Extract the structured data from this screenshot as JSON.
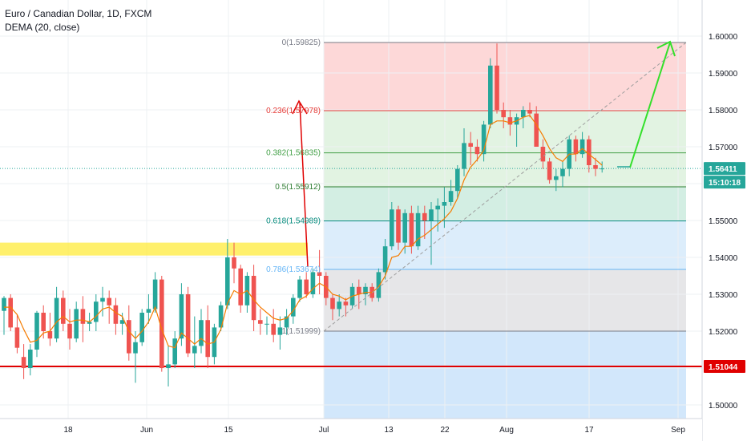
{
  "header": {
    "title": "Euro / Canadian Dollar, 1D, FXCM",
    "indicator": "DEMA (20, close)"
  },
  "colors": {
    "up": "#26a69a",
    "down": "#ef5350",
    "dema": "#f57c00",
    "support": "#e00000",
    "price_badge": "#26a69a",
    "arrow_up": "#33e02a",
    "arrow_red": "#e00000",
    "highlight": "#ffeb3b"
  },
  "chart_data": {
    "type": "candlestick",
    "ylim": [
      1.4965,
      1.605
    ],
    "y_ticks": [
      "1.60000",
      "1.59000",
      "1.58000",
      "1.57000",
      "1.56000",
      "1.55000",
      "1.54000",
      "1.53000",
      "1.52000",
      "1.51000",
      "1.50000"
    ],
    "x_ticks": [
      "18",
      "Jun",
      "15",
      "Jul",
      "13",
      "22",
      "Aug",
      "17",
      "Sep"
    ],
    "price_badge": "1.56411",
    "countdown_badge": "15:10:18",
    "support_badge": "1.51044",
    "support_level": 1.51044,
    "current_price": 1.56411,
    "highlight_zone": [
      1.5405,
      1.544
    ],
    "fib_levels": [
      {
        "label": "0(1.59825)",
        "price": 1.59825,
        "color": "#787b86"
      },
      {
        "label": "0.236(1.57978)",
        "price": 1.57978,
        "color": "#e53935"
      },
      {
        "label": "0.382(1.56835)",
        "price": 1.56835,
        "color": "#43a047"
      },
      {
        "label": "0.5(1.55912)",
        "price": 1.55912,
        "color": "#2e7d32"
      },
      {
        "label": "0.618(1.54989)",
        "price": 1.54989,
        "color": "#00897b"
      },
      {
        "label": "0.786(1.53674)",
        "price": 1.53674,
        "color": "#64b5f6"
      },
      {
        "label": "1(1.51999)",
        "price": 1.51999,
        "color": "#787b86"
      }
    ],
    "candles": [
      [
        1.5255,
        1.5295,
        1.519,
        1.529
      ],
      [
        1.529,
        1.53,
        1.52,
        1.521
      ],
      [
        1.521,
        1.5245,
        1.514,
        1.5155
      ],
      [
        1.513,
        1.5165,
        1.507,
        1.51
      ],
      [
        1.51,
        1.5165,
        1.508,
        1.515
      ],
      [
        1.515,
        1.5255,
        1.513,
        1.525
      ],
      [
        1.525,
        1.527,
        1.518,
        1.52
      ],
      [
        1.52,
        1.525,
        1.516,
        1.518
      ],
      [
        1.518,
        1.532,
        1.517,
        1.529
      ],
      [
        1.529,
        1.531,
        1.52,
        1.522
      ],
      [
        1.522,
        1.526,
        1.515,
        1.518
      ],
      [
        1.518,
        1.528,
        1.517,
        1.526
      ],
      [
        1.526,
        1.5295,
        1.517,
        1.522
      ],
      [
        1.522,
        1.525,
        1.52,
        1.5225
      ],
      [
        1.5225,
        1.53,
        1.52,
        1.528
      ],
      [
        1.528,
        1.532,
        1.524,
        1.529
      ],
      [
        1.529,
        1.531,
        1.522,
        1.527
      ],
      [
        1.527,
        1.529,
        1.519,
        1.522
      ],
      [
        1.522,
        1.525,
        1.519,
        1.523
      ],
      [
        1.523,
        1.527,
        1.512,
        1.514
      ],
      [
        1.514,
        1.52,
        1.506,
        1.517
      ],
      [
        1.517,
        1.526,
        1.516,
        1.525
      ],
      [
        1.525,
        1.53,
        1.522,
        1.526
      ],
      [
        1.526,
        1.536,
        1.525,
        1.534
      ],
      [
        1.534,
        1.535,
        1.509,
        1.51
      ],
      [
        1.51,
        1.516,
        1.505,
        1.511
      ],
      [
        1.511,
        1.52,
        1.51,
        1.518
      ],
      [
        1.518,
        1.533,
        1.516,
        1.53
      ],
      [
        1.53,
        1.532,
        1.513,
        1.514
      ],
      [
        1.514,
        1.524,
        1.51,
        1.516
      ],
      [
        1.516,
        1.526,
        1.514,
        1.523
      ],
      [
        1.523,
        1.527,
        1.51,
        1.513
      ],
      [
        1.513,
        1.522,
        1.511,
        1.521
      ],
      [
        1.521,
        1.528,
        1.52,
        1.527
      ],
      [
        1.527,
        1.545,
        1.526,
        1.54
      ],
      [
        1.54,
        1.544,
        1.533,
        1.537
      ],
      [
        1.537,
        1.538,
        1.525,
        1.527
      ],
      [
        1.527,
        1.536,
        1.525,
        1.535
      ],
      [
        1.535,
        1.538,
        1.52,
        1.523
      ],
      [
        1.523,
        1.526,
        1.519,
        1.522
      ],
      [
        1.522,
        1.524,
        1.519,
        1.522
      ],
      [
        1.522,
        1.526,
        1.517,
        1.519
      ],
      [
        1.519,
        1.524,
        1.515,
        1.521
      ],
      [
        1.521,
        1.526,
        1.519,
        1.524
      ],
      [
        1.524,
        1.53,
        1.522,
        1.529
      ],
      [
        1.529,
        1.535,
        1.528,
        1.534
      ],
      [
        1.534,
        1.536,
        1.529,
        1.53
      ],
      [
        1.53,
        1.537,
        1.529,
        1.536
      ],
      [
        1.536,
        1.542,
        1.53,
        1.535
      ],
      [
        1.535,
        1.536,
        1.527,
        1.529
      ],
      [
        1.529,
        1.53,
        1.523,
        1.526
      ],
      [
        1.526,
        1.53,
        1.524,
        1.528
      ],
      [
        1.528,
        1.529,
        1.524,
        1.527
      ],
      [
        1.527,
        1.533,
        1.526,
        1.532
      ],
      [
        1.532,
        1.534,
        1.526,
        1.53
      ],
      [
        1.53,
        1.533,
        1.527,
        1.532
      ],
      [
        1.532,
        1.533,
        1.528,
        1.529
      ],
      [
        1.529,
        1.537,
        1.528,
        1.536
      ],
      [
        1.536,
        1.545,
        1.534,
        1.543
      ],
      [
        1.543,
        1.555,
        1.542,
        1.553
      ],
      [
        1.553,
        1.554,
        1.542,
        1.544
      ],
      [
        1.544,
        1.553,
        1.541,
        1.552
      ],
      [
        1.552,
        1.554,
        1.541,
        1.543
      ],
      [
        1.543,
        1.554,
        1.542,
        1.552
      ],
      [
        1.552,
        1.554,
        1.545,
        1.55
      ],
      [
        1.55,
        1.555,
        1.538,
        1.553
      ],
      [
        1.553,
        1.556,
        1.547,
        1.554
      ],
      [
        1.554,
        1.559,
        1.548,
        1.555
      ],
      [
        1.555,
        1.561,
        1.554,
        1.558
      ],
      [
        1.558,
        1.565,
        1.556,
        1.564
      ],
      [
        1.564,
        1.575,
        1.562,
        1.571
      ],
      [
        1.571,
        1.574,
        1.565,
        1.57
      ],
      [
        1.57,
        1.572,
        1.566,
        1.568
      ],
      [
        1.568,
        1.577,
        1.566,
        1.576
      ],
      [
        1.576,
        1.594,
        1.575,
        1.592
      ],
      [
        1.592,
        1.598,
        1.579,
        1.58
      ],
      [
        1.58,
        1.582,
        1.575,
        1.578
      ],
      [
        1.578,
        1.58,
        1.573,
        1.576
      ],
      [
        1.576,
        1.579,
        1.57,
        1.578
      ],
      [
        1.578,
        1.581,
        1.575,
        1.58
      ],
      [
        1.58,
        1.582,
        1.578,
        1.579
      ],
      [
        1.579,
        1.581,
        1.57,
        1.57
      ],
      [
        1.57,
        1.572,
        1.564,
        1.566
      ],
      [
        1.566,
        1.567,
        1.56,
        1.561
      ],
      [
        1.561,
        1.564,
        1.558,
        1.562
      ],
      [
        1.562,
        1.566,
        1.559,
        1.564
      ],
      [
        1.564,
        1.573,
        1.562,
        1.572
      ],
      [
        1.572,
        1.573,
        1.566,
        1.568
      ],
      [
        1.568,
        1.574,
        1.567,
        1.572
      ],
      [
        1.572,
        1.573,
        1.563,
        1.565
      ],
      [
        1.565,
        1.567,
        1.562,
        1.564
      ],
      [
        1.564,
        1.566,
        1.563,
        1.5641
      ]
    ],
    "dema": [
      1.5265,
      1.5265,
      1.5245,
      1.5205,
      1.517,
      1.5175,
      1.5195,
      1.52,
      1.5225,
      1.524,
      1.5225,
      1.523,
      1.523,
      1.5225,
      1.524,
      1.526,
      1.5265,
      1.525,
      1.524,
      1.52,
      1.518,
      1.52,
      1.5225,
      1.5265,
      1.5205,
      1.516,
      1.5155,
      1.5195,
      1.518,
      1.5165,
      1.518,
      1.5165,
      1.517,
      1.5205,
      1.5275,
      1.531,
      1.53,
      1.531,
      1.5285,
      1.5265,
      1.525,
      1.5235,
      1.523,
      1.5235,
      1.5255,
      1.5285,
      1.5295,
      1.5315,
      1.533,
      1.532,
      1.53,
      1.5295,
      1.5285,
      1.5295,
      1.53,
      1.5305,
      1.5305,
      1.532,
      1.535,
      1.54,
      1.5405,
      1.543,
      1.543,
      1.545,
      1.546,
      1.5475,
      1.549,
      1.5505,
      1.5525,
      1.556,
      1.561,
      1.5645,
      1.5665,
      1.569,
      1.576,
      1.577,
      1.577,
      1.5765,
      1.577,
      1.578,
      1.5785,
      1.576,
      1.573,
      1.5695,
      1.567,
      1.566,
      1.568,
      1.568,
      1.5695,
      1.568,
      1.5665,
      1.565
    ]
  }
}
